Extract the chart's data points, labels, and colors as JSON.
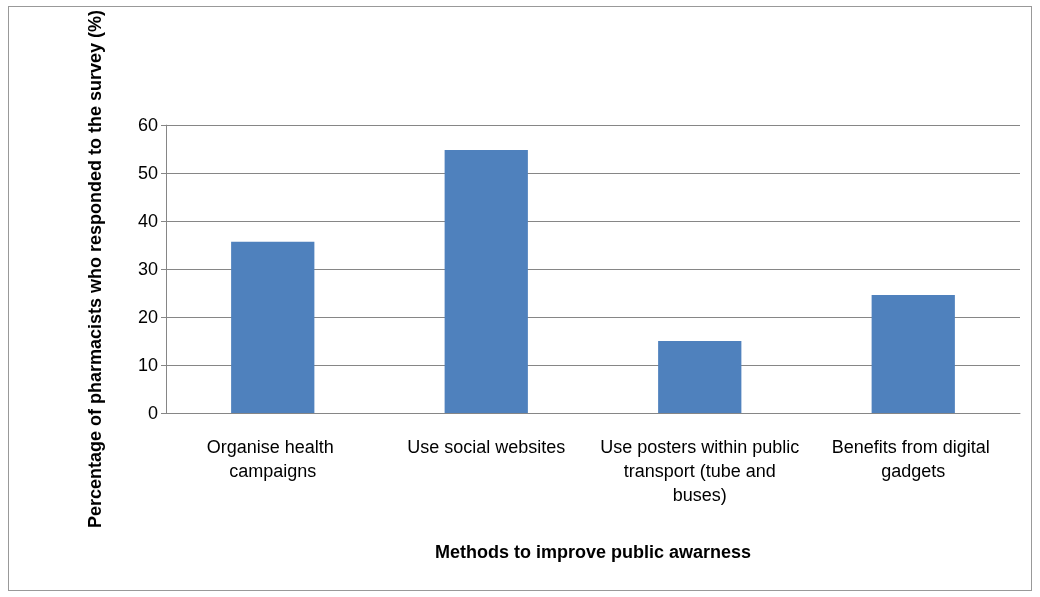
{
  "chart_data": {
    "type": "bar",
    "xlabel": "Methods to improve public awarness",
    "ylabel": "Percentage of pharmacists who responded to the survey (%)",
    "categories": [
      "Organise health campaigns",
      "Use social websites",
      "Use posters within public transport (tube and buses)",
      "Benefits from digital gadgets"
    ],
    "values": [
      35.7,
      54.8,
      15.0,
      24.6
    ],
    "color": "#4f81bd",
    "ylim": [
      0,
      60
    ],
    "yticks": [
      0,
      10,
      20,
      30,
      40,
      50,
      60
    ],
    "grid": "y"
  }
}
